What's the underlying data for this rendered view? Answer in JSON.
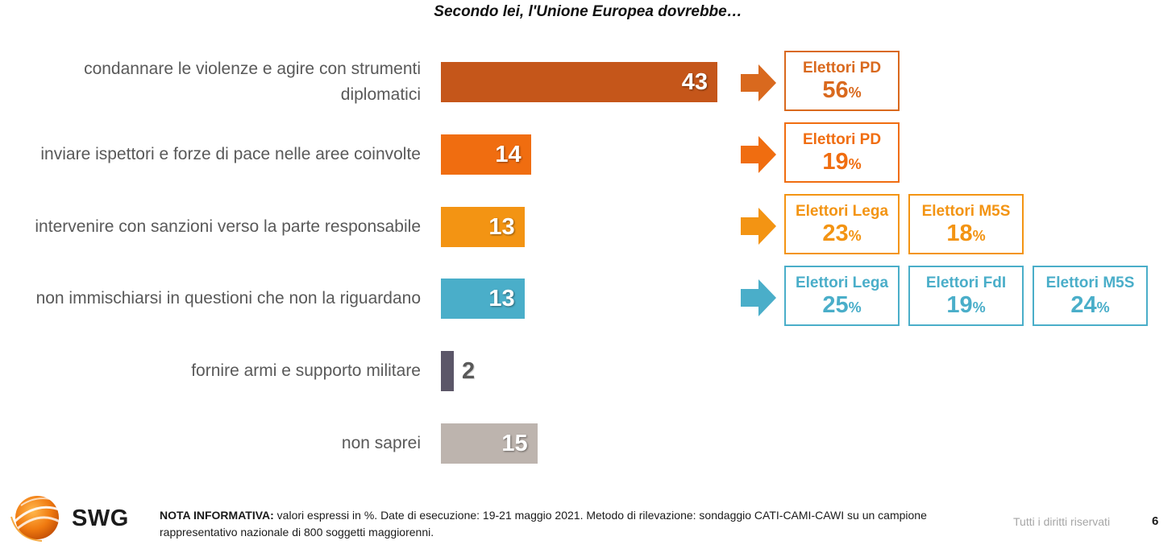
{
  "title": "Secondo lei, l'Unione Europea dovrebbe…",
  "chart_data": {
    "type": "bar",
    "orientation": "horizontal",
    "title": "Secondo lei, l'Unione Europea dovrebbe…",
    "unit": "%",
    "categories": [
      "condannare le violenze e agire con strumenti diplomatici",
      "inviare ispettori e forze di pace nelle aree coinvolte",
      "intervenire con sanzioni verso la parte responsabile",
      "non immischiarsi in questioni che non la riguardano",
      "fornire armi e supporto militare",
      "non saprei"
    ],
    "values": [
      43,
      14,
      13,
      13,
      2,
      15
    ],
    "colors": [
      "#c5561a",
      "#f06d10",
      "#f39413",
      "#4aaec9",
      "#5b5668",
      "#bdb4ae"
    ],
    "xlim": [
      0,
      60
    ],
    "grid": false,
    "legend": "none"
  },
  "callouts": [
    {
      "color": "#d9691e",
      "boxes": [
        {
          "voter": "Elettori PD",
          "pct": "56",
          "sym": "%"
        }
      ]
    },
    {
      "color": "#f06d10",
      "boxes": [
        {
          "voter": "Elettori PD",
          "pct": "19",
          "sym": "%"
        }
      ]
    },
    {
      "color": "#f39413",
      "boxes": [
        {
          "voter": "Elettori Lega",
          "pct": "23",
          "sym": "%"
        },
        {
          "voter": "Elettori M5S",
          "pct": "18",
          "sym": "%"
        }
      ]
    },
    {
      "color": "#4aaec9",
      "boxes": [
        {
          "voter": "Elettori Lega",
          "pct": "25",
          "sym": "%"
        },
        {
          "voter": "Elettori FdI",
          "pct": "19",
          "sym": "%"
        },
        {
          "voter": "Elettori M5S",
          "pct": "24",
          "sym": "%"
        }
      ]
    }
  ],
  "footer": {
    "logo_text": "SWG",
    "note_label": "NOTA INFORMATIVA:",
    "note_text": " valori espressi in %. Date di esecuzione: 19-21 maggio 2021. Metodo di rilevazione: sondaggio CATI-CAMI-CAWI su un campione rappresentativo nazionale di 800 soggetti maggiorenni.",
    "rights": "Tutti i diritti riservati",
    "page_number": "6"
  }
}
